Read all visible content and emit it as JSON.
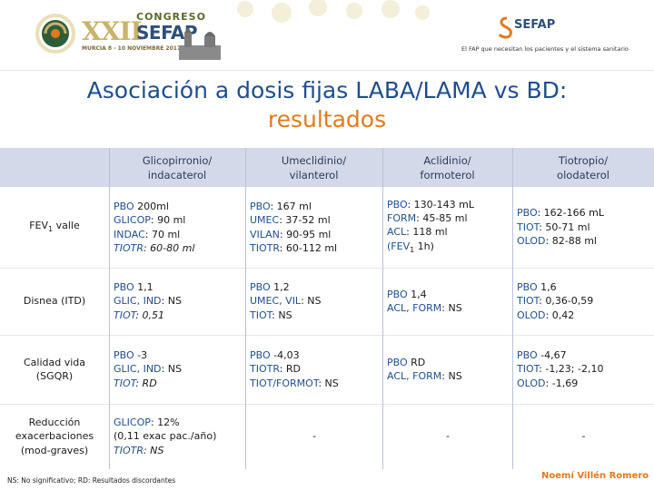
{
  "header": {
    "congress_num": "XXII",
    "congress_word": "CONGRESO",
    "congress_org": "SEFAP",
    "congress_date": "MURCIA 8 - 10 NOVIEMBRE 2017",
    "sefap_logo": "SEFAP",
    "sefap_slogan": "El FAP que necesitan los pacientes y el sistema sanitario"
  },
  "title": {
    "line1": "Asociación a dosis fijas LABA/LAMA vs BD:",
    "line2": "resultados"
  },
  "table": {
    "columns": [
      {
        "line1": "Glicopirronio/",
        "line2": "indacaterol"
      },
      {
        "line1": "Umeclidinio/",
        "line2": "vilanterol"
      },
      {
        "line1": "Aclidinio/",
        "line2": "formoterol"
      },
      {
        "line1": "Tiotropio/",
        "line2": "olodaterol"
      }
    ],
    "rows": [
      {
        "label_main": "FEV",
        "label_sub": "1",
        "label_rest": " valle",
        "cells": [
          {
            "lines": [
              {
                "k": "PBO",
                "v": " 200ml"
              },
              {
                "k": "GLICOP",
                "v": ": 90 ml"
              },
              {
                "k": "INDAC",
                "v": ": 70 ml"
              },
              {
                "k": "TIOTR",
                "v": ": 60-80 ml",
                "italic": true
              }
            ]
          },
          {
            "lines": [
              {
                "k": "PBO",
                "v": ": 167 ml"
              },
              {
                "k": "UMEC",
                "v": ": 37-52 ml"
              },
              {
                "k": "VILAN",
                "v": ": 90-95 ml"
              },
              {
                "k": "TIOTR",
                "v": ": 60-112 ml"
              }
            ]
          },
          {
            "lines": [
              {
                "k": "PBO",
                "v": ": 130-143 mL"
              },
              {
                "k": "FORM",
                "v": ": 45-85 ml"
              },
              {
                "k": "ACL",
                "v": ": 118 ml"
              },
              {
                "k": "(FEV",
                "v": "1",
                "tail": " 1h)",
                "sub": true
              }
            ]
          },
          {
            "lines": [
              {
                "k": "PBO",
                "v": ": 162-166 mL"
              },
              {
                "k": "TIOT",
                "v": ": 50-71 ml"
              },
              {
                "k": "OLOD",
                "v": ": 82-88 ml"
              }
            ]
          }
        ]
      },
      {
        "label_main": "Disnea (ITD)",
        "cells": [
          {
            "lines": [
              {
                "k": "PBO",
                "v": " 1,1"
              },
              {
                "k": "GLIC, IND",
                "v": ": NS"
              },
              {
                "k": "TIOT",
                "v": ": 0,51",
                "italic": true
              }
            ]
          },
          {
            "lines": [
              {
                "k": "PBO",
                "v": " 1,2"
              },
              {
                "k": "UMEC, VIL",
                "v": ": NS"
              },
              {
                "k": "TIOT",
                "v": ": NS"
              }
            ]
          },
          {
            "lines": [
              {
                "k": "PBO",
                "v": " 1,4"
              },
              {
                "k": "ACL, FORM",
                "v": ": NS"
              }
            ]
          },
          {
            "lines": [
              {
                "k": "PBO",
                "v": " 1,6"
              },
              {
                "k": "TIOT",
                "v": ": 0,36-0,59"
              },
              {
                "k": "OLOD",
                "v": ": 0,42"
              }
            ]
          }
        ]
      },
      {
        "label_main": "Calidad vida",
        "label_second": "(SGQR)",
        "cells": [
          {
            "lines": [
              {
                "k": "PBO",
                "v": " -3"
              },
              {
                "k": "GLIC, IND",
                "v": ": NS"
              },
              {
                "k": "TIOT",
                "v": ": RD",
                "italic": true
              }
            ]
          },
          {
            "lines": [
              {
                "k": "PBO",
                "v": " -4,03"
              },
              {
                "k": "TIOTR",
                "v": ": RD"
              },
              {
                "k": "TIOT/FORMOT",
                "v": ": NS"
              }
            ]
          },
          {
            "lines": [
              {
                "k": "PBO",
                "v": " RD"
              },
              {
                "k": "ACL, FORM",
                "v": ": NS"
              }
            ]
          },
          {
            "lines": [
              {
                "k": "PBO",
                "v": " -4,67"
              },
              {
                "k": "TIOT",
                "v": ": -1,23; -2,10"
              },
              {
                "k": "OLOD",
                "v": ": -1,69"
              }
            ]
          }
        ]
      },
      {
        "label_main": "Reducción",
        "label_second": "exacerbaciones",
        "label_third": "(mod-graves)",
        "cells": [
          {
            "lines": [
              {
                "k": "GLICOP",
                "v": ": 12%"
              },
              {
                "k": "",
                "v": "(0,11 exac pac./año)"
              },
              {
                "k": "TIOTR",
                "v": ": NS",
                "italic": true
              }
            ]
          },
          {
            "dash": "-"
          },
          {
            "dash": "-"
          },
          {
            "dash": "-"
          }
        ]
      }
    ]
  },
  "footnote": "NS: No significativo; RD: Resultados discordantes",
  "author": "Noemí Villén Romero",
  "colors": {
    "title_blue": "#1f4e8c",
    "title_orange": "#e07a1c",
    "header_fill": "#d3d9e8",
    "key_blue": "#1f4e8c"
  }
}
